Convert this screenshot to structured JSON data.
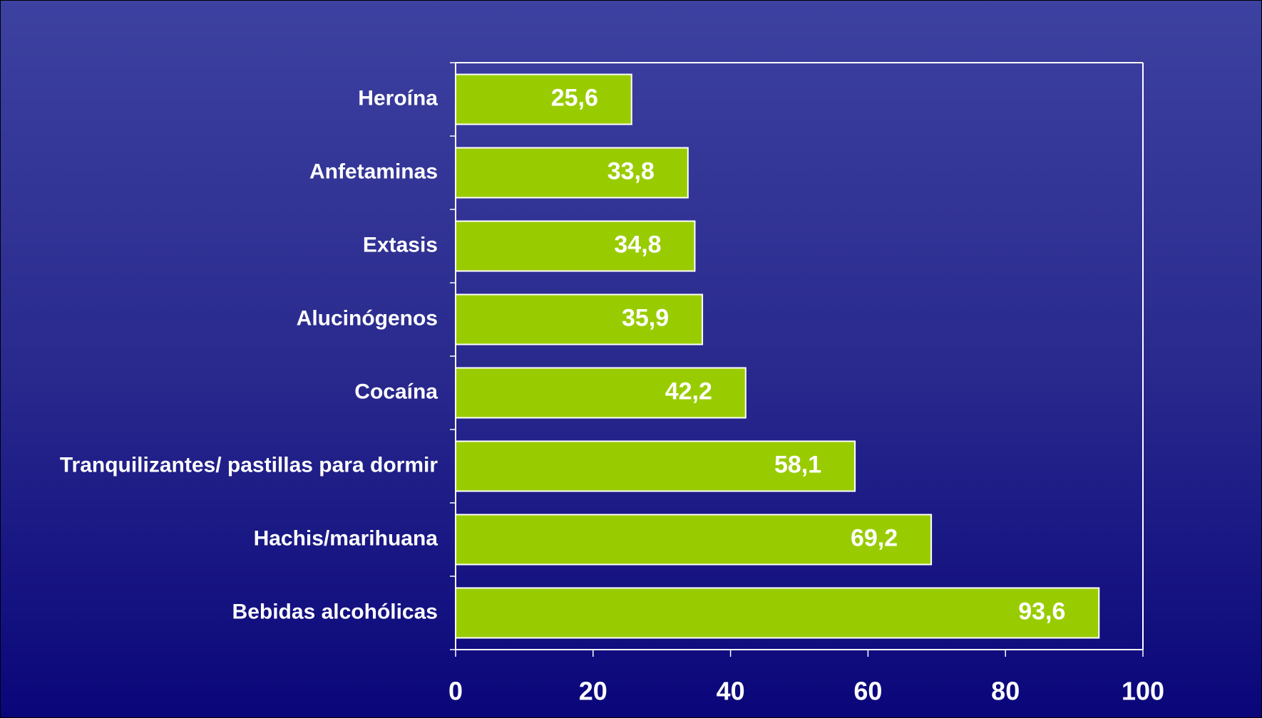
{
  "chart_data": {
    "type": "bar",
    "orientation": "horizontal",
    "categories": [
      "Heroína",
      "Anfetaminas",
      "Extasis",
      "Alucinógenos",
      "Cocaína",
      "Tranquilizantes/ pastillas para dormir",
      "Hachis/marihuana",
      "Bebidas alcohólicas"
    ],
    "values": [
      25.6,
      33.8,
      34.8,
      35.9,
      42.2,
      58.1,
      69.2,
      93.6
    ],
    "value_labels": [
      "25,6",
      "33,8",
      "34,8",
      "35,9",
      "42,2",
      "58,1",
      "69,2",
      "93,6"
    ],
    "color": "#99cc00",
    "xlim": [
      0,
      100
    ],
    "xticks": [
      0,
      20,
      40,
      60,
      80,
      100
    ]
  }
}
